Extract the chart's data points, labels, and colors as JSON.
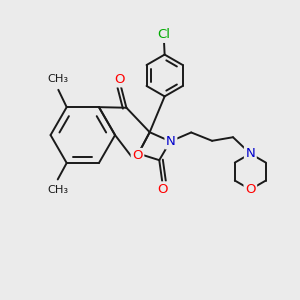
{
  "bg_color": "#ebebeb",
  "bond_color": "#1a1a1a",
  "bond_width": 1.4,
  "dbo": 0.055,
  "atom_colors": {
    "O": "#ff0000",
    "N": "#0000cc",
    "Cl": "#00aa00",
    "C": "#1a1a1a"
  },
  "fs": 9.5
}
